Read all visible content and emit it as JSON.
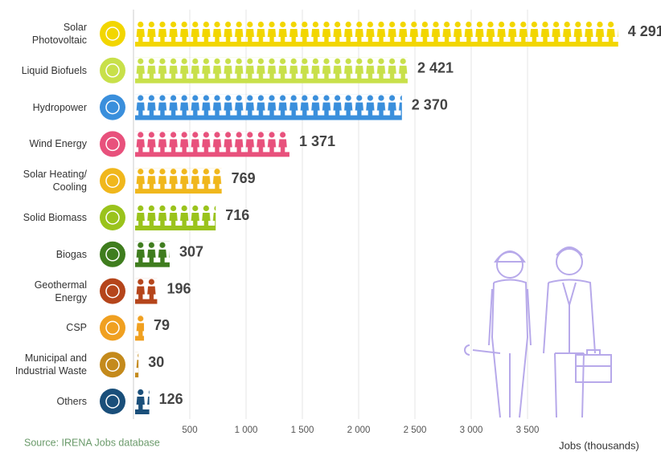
{
  "chart_data": {
    "type": "bar",
    "orientation": "horizontal",
    "categories": [
      "Solar\nPhotovoltaic",
      "Liquid Biofuels",
      "Hydropower",
      "Wind Energy",
      "Solar Heating/\nCooling",
      "Solid Biomass",
      "Biogas",
      "Geothermal\nEnergy",
      "CSP",
      "Municipal and\nIndustrial Waste",
      "Others"
    ],
    "values": [
      4291,
      2421,
      2370,
      1371,
      769,
      716,
      307,
      196,
      79,
      30,
      126
    ],
    "value_labels": [
      "4 291",
      "2 421",
      "2 370",
      "1 371",
      "769",
      "716",
      "307",
      "196",
      "79",
      "30",
      "126"
    ],
    "colors": [
      "#f2d600",
      "#c8e04a",
      "#3a8fdc",
      "#e8517c",
      "#f0b71c",
      "#9ac31c",
      "#3f7d1e",
      "#b5451b",
      "#f0a020",
      "#c48a1c",
      "#1a4f7a"
    ],
    "xlim": [
      0,
      4500
    ],
    "xticks": [
      500,
      {
        "value": 1000,
        "label": "1 000"
      },
      {
        "value": 1500,
        "label": "1 500"
      },
      {
        "value": 2000,
        "label": "2 000"
      },
      {
        "value": 2500,
        "label": "2 500"
      },
      {
        "value": 3000,
        "label": "3 000"
      },
      {
        "value": 3500,
        "label": "3 500"
      }
    ],
    "xlabel": "Jobs (thousands)",
    "source": "Source: IRENA Jobs database",
    "grid": true
  }
}
